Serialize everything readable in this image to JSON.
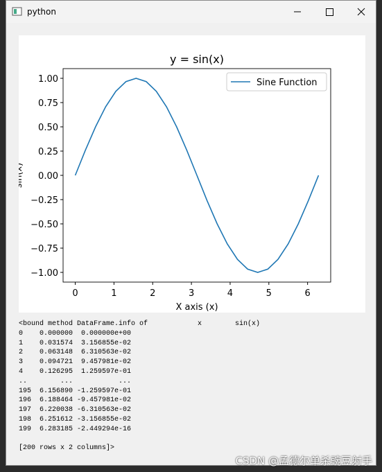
{
  "window": {
    "title": "python"
  },
  "chart_data": {
    "type": "line",
    "title": "y = sin(x)",
    "xlabel": "X axis (x)",
    "ylabel": "sin(x)",
    "x": [
      0,
      0.262,
      0.524,
      0.785,
      1.047,
      1.309,
      1.571,
      1.833,
      2.094,
      2.356,
      2.618,
      2.88,
      3.142,
      3.403,
      3.665,
      3.927,
      4.189,
      4.451,
      4.712,
      4.974,
      5.236,
      5.498,
      5.76,
      6.021,
      6.283
    ],
    "series": [
      {
        "name": "Sine Function",
        "color": "#1f77b4",
        "values": [
          0,
          0.259,
          0.5,
          0.707,
          0.866,
          0.966,
          1,
          0.966,
          0.866,
          0.707,
          0.5,
          0.259,
          0,
          -0.259,
          -0.5,
          -0.707,
          -0.866,
          -0.966,
          -1,
          -0.966,
          -0.866,
          -0.707,
          -0.5,
          -0.259,
          0
        ]
      }
    ],
    "xlim": [
      -0.314,
      6.597
    ],
    "ylim": [
      -1.1,
      1.1
    ],
    "xticks": [
      0,
      1,
      2,
      3,
      4,
      5,
      6
    ],
    "yticks": [
      {
        "value": 1,
        "label": "1.00"
      },
      {
        "value": 0.75,
        "label": "0.75"
      },
      {
        "value": 0.5,
        "label": "0.50"
      },
      {
        "value": 0.25,
        "label": "0.25"
      },
      {
        "value": 0,
        "label": "0.00"
      },
      {
        "value": -0.25,
        "label": "−0.25"
      },
      {
        "value": -0.5,
        "label": "−0.50"
      },
      {
        "value": -0.75,
        "label": "−0.75"
      },
      {
        "value": -1,
        "label": "−1.00"
      }
    ],
    "legend": "upper right",
    "grid": false
  },
  "console": {
    "lines": [
      "<bound method DataFrame.info of            x        sin(x)",
      "0    0.000000  0.000000e+00",
      "1    0.031574  3.156855e-02",
      "2    0.063148  6.310563e-02",
      "3    0.094721  9.457981e-02",
      "4    0.126295  1.259597e-01",
      "..        ...           ...",
      "195  6.156890 -1.259597e-01",
      "196  6.188464 -9.457981e-02",
      "197  6.220038 -6.310563e-02",
      "198  6.251612 -3.156855e-02",
      "199  6.283185 -2.449294e-16"
    ],
    "footer": "[200 rows x 2 columns]>"
  },
  "watermark": "CSDN @孟德尔单杀豌豆射手"
}
